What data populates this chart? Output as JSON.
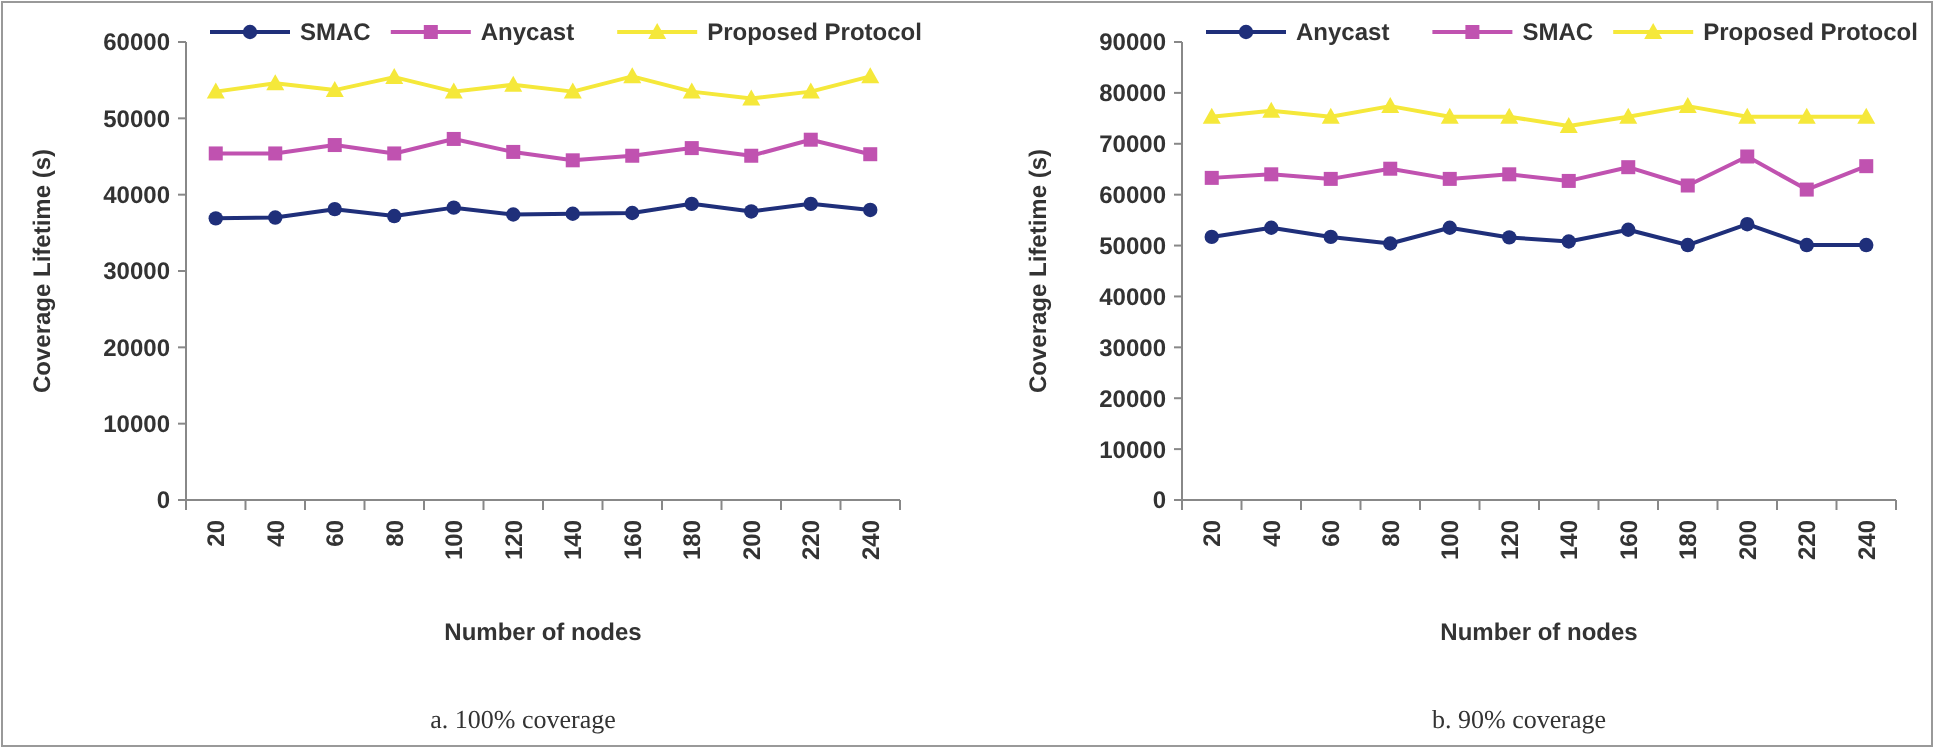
{
  "chart_data": [
    {
      "type": "line",
      "xlabel": "Number of nodes",
      "ylabel": "Coverage Lifetime (s)",
      "categories": [
        "20",
        "40",
        "60",
        "80",
        "100",
        "120",
        "140",
        "160",
        "180",
        "200",
        "220",
        "240"
      ],
      "ylim": [
        0,
        60000
      ],
      "yticks": [
        0,
        10000,
        20000,
        30000,
        40000,
        50000,
        60000
      ],
      "grid": false,
      "legend": "top",
      "marker": "circle",
      "line_style": "solid",
      "annotations": [
        "a. 100% coverage"
      ],
      "series": [
        {
          "name": "SMAC",
          "color": "#1f2f7a",
          "marker": "circle",
          "values": [
            36900,
            37000,
            38100,
            37200,
            38300,
            37400,
            37500,
            37600,
            38800,
            37800,
            38800,
            38000
          ]
        },
        {
          "name": "Anycast",
          "color": "#c052b0",
          "marker": "square",
          "values": [
            45400,
            45400,
            46500,
            45400,
            47300,
            45600,
            44500,
            45100,
            46100,
            45100,
            47200,
            45300
          ]
        },
        {
          "name": "Proposed Protocol",
          "color": "#f5e83a",
          "marker": "triangle",
          "values": [
            53500,
            54600,
            53700,
            55400,
            53500,
            54400,
            53500,
            55500,
            53500,
            52600,
            53500,
            55500
          ]
        }
      ]
    },
    {
      "type": "line",
      "xlabel": "Number of nodes",
      "ylabel": "Coverage Lifetime (s)",
      "categories": [
        "20",
        "40",
        "60",
        "80",
        "100",
        "120",
        "140",
        "160",
        "180",
        "200",
        "220",
        "240"
      ],
      "ylim": [
        0,
        90000
      ],
      "yticks": [
        0,
        10000,
        20000,
        30000,
        40000,
        50000,
        60000,
        70000,
        80000,
        90000
      ],
      "grid": false,
      "legend": "top",
      "marker": "circle",
      "line_style": "solid",
      "annotations": [
        "b. 90% coverage"
      ],
      "series": [
        {
          "name": "Anycast",
          "color": "#1f2f7a",
          "marker": "circle",
          "values": [
            51700,
            53500,
            51700,
            50400,
            53500,
            51600,
            50800,
            53100,
            50100,
            54200,
            50100,
            50100
          ]
        },
        {
          "name": "SMAC",
          "color": "#c052b0",
          "marker": "square",
          "values": [
            63300,
            64000,
            63100,
            65100,
            63100,
            64000,
            62700,
            65400,
            61800,
            67500,
            61000,
            65600
          ]
        },
        {
          "name": "Proposed Protocol",
          "color": "#f5e83a",
          "marker": "triangle",
          "values": [
            75300,
            76500,
            75300,
            77400,
            75300,
            75300,
            73500,
            75300,
            77400,
            75300,
            75300,
            75300
          ]
        }
      ]
    }
  ]
}
